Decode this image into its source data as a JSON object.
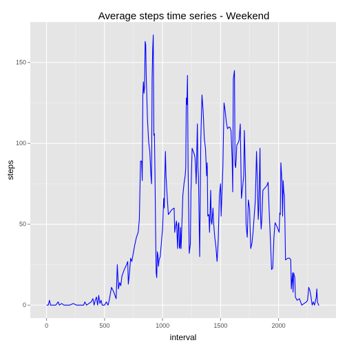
{
  "chart_data": {
    "type": "line",
    "title": "Average steps time series - Weekend",
    "xlabel": "interval",
    "ylabel": "steps",
    "xlim": [
      -140,
      2495
    ],
    "ylim": [
      -8,
      175
    ],
    "x_ticks": [
      0,
      500,
      1000,
      1500,
      2000
    ],
    "y_ticks": [
      0,
      50,
      100,
      150
    ],
    "grid": true,
    "legend": "none",
    "colors": {
      "line": "#0000ff",
      "panel": "#e5e5e5",
      "grid_major": "#ffffff",
      "grid_minor": "#f2f2f2"
    },
    "series": [
      {
        "points": [
          [
            0,
            0
          ],
          [
            15,
            0
          ],
          [
            25,
            3
          ],
          [
            35,
            0
          ],
          [
            80,
            0
          ],
          [
            100,
            2
          ],
          [
            110,
            0
          ],
          [
            130,
            1
          ],
          [
            150,
            0
          ],
          [
            200,
            0
          ],
          [
            230,
            1
          ],
          [
            260,
            0
          ],
          [
            300,
            0
          ],
          [
            320,
            0
          ],
          [
            330,
            2
          ],
          [
            345,
            0
          ],
          [
            365,
            1
          ],
          [
            385,
            2
          ],
          [
            400,
            4
          ],
          [
            410,
            0
          ],
          [
            420,
            3
          ],
          [
            430,
            5
          ],
          [
            440,
            0
          ],
          [
            450,
            6
          ],
          [
            460,
            1
          ],
          [
            470,
            3
          ],
          [
            480,
            0
          ],
          [
            500,
            0
          ],
          [
            515,
            2
          ],
          [
            530,
            0
          ],
          [
            540,
            3
          ],
          [
            560,
            11
          ],
          [
            580,
            8
          ],
          [
            600,
            4
          ],
          [
            610,
            25
          ],
          [
            620,
            10
          ],
          [
            630,
            14
          ],
          [
            640,
            12
          ],
          [
            650,
            18
          ],
          [
            660,
            20
          ],
          [
            670,
            22
          ],
          [
            690,
            25
          ],
          [
            700,
            27
          ],
          [
            705,
            13
          ],
          [
            715,
            20
          ],
          [
            725,
            29
          ],
          [
            735,
            27
          ],
          [
            745,
            31
          ],
          [
            760,
            37
          ],
          [
            775,
            42
          ],
          [
            790,
            45
          ],
          [
            800,
            53
          ],
          [
            810,
            89
          ],
          [
            820,
            89
          ],
          [
            825,
            77
          ],
          [
            830,
            130
          ],
          [
            835,
            138
          ],
          [
            840,
            131
          ],
          [
            845,
            135
          ],
          [
            850,
            163
          ],
          [
            855,
            161
          ],
          [
            860,
            140
          ],
          [
            870,
            115
          ],
          [
            880,
            101
          ],
          [
            890,
            95
          ],
          [
            900,
            80
          ],
          [
            905,
            75
          ],
          [
            910,
            140
          ],
          [
            915,
            158
          ],
          [
            920,
            167
          ],
          [
            925,
            105
          ],
          [
            930,
            106
          ],
          [
            935,
            80
          ],
          [
            940,
            47
          ],
          [
            945,
            20
          ],
          [
            950,
            17
          ],
          [
            955,
            33
          ],
          [
            960,
            31
          ],
          [
            965,
            24
          ],
          [
            970,
            28
          ],
          [
            980,
            30
          ],
          [
            1000,
            47
          ],
          [
            1010,
            66
          ],
          [
            1015,
            60
          ],
          [
            1020,
            80
          ],
          [
            1025,
            95
          ],
          [
            1030,
            80
          ],
          [
            1040,
            67
          ],
          [
            1050,
            56
          ],
          [
            1080,
            59
          ],
          [
            1100,
            60
          ],
          [
            1105,
            45
          ],
          [
            1110,
            48
          ],
          [
            1120,
            52
          ],
          [
            1130,
            35
          ],
          [
            1135,
            50
          ],
          [
            1140,
            51
          ],
          [
            1145,
            36
          ],
          [
            1150,
            35
          ],
          [
            1155,
            48
          ],
          [
            1160,
            35
          ],
          [
            1175,
            68
          ],
          [
            1185,
            75
          ],
          [
            1195,
            80
          ],
          [
            1200,
            85
          ],
          [
            1205,
            128
          ],
          [
            1210,
            124
          ],
          [
            1215,
            142
          ],
          [
            1220,
            87
          ],
          [
            1230,
            32
          ],
          [
            1240,
            38
          ],
          [
            1245,
            70
          ],
          [
            1255,
            97
          ],
          [
            1265,
            95
          ],
          [
            1275,
            93
          ],
          [
            1280,
            91
          ],
          [
            1285,
            85
          ],
          [
            1290,
            75
          ],
          [
            1300,
            112
          ],
          [
            1305,
            85
          ],
          [
            1310,
            79
          ],
          [
            1320,
            30
          ],
          [
            1330,
            103
          ],
          [
            1340,
            130
          ],
          [
            1350,
            120
          ],
          [
            1360,
            103
          ],
          [
            1370,
            97
          ],
          [
            1380,
            80
          ],
          [
            1385,
            88
          ],
          [
            1390,
            55
          ],
          [
            1400,
            56
          ],
          [
            1405,
            45
          ],
          [
            1415,
            71
          ],
          [
            1420,
            52
          ],
          [
            1425,
            50
          ],
          [
            1435,
            60
          ],
          [
            1440,
            51
          ],
          [
            1450,
            42
          ],
          [
            1460,
            36
          ],
          [
            1470,
            27
          ],
          [
            1480,
            40
          ],
          [
            1490,
            68
          ],
          [
            1500,
            75
          ],
          [
            1505,
            55
          ],
          [
            1510,
            65
          ],
          [
            1520,
            85
          ],
          [
            1530,
            125
          ],
          [
            1540,
            120
          ],
          [
            1550,
            113
          ],
          [
            1560,
            109
          ],
          [
            1570,
            110
          ],
          [
            1580,
            110
          ],
          [
            1590,
            108
          ],
          [
            1600,
            90
          ],
          [
            1605,
            70
          ],
          [
            1610,
            140
          ],
          [
            1620,
            145
          ],
          [
            1625,
            87
          ],
          [
            1630,
            85
          ],
          [
            1635,
            90
          ],
          [
            1640,
            99
          ],
          [
            1650,
            100
          ],
          [
            1660,
            102
          ],
          [
            1670,
            112
          ],
          [
            1680,
            66
          ],
          [
            1690,
            73
          ],
          [
            1700,
            80
          ],
          [
            1705,
            108
          ],
          [
            1715,
            80
          ],
          [
            1720,
            50
          ],
          [
            1730,
            42
          ],
          [
            1740,
            65
          ],
          [
            1750,
            60
          ],
          [
            1760,
            35
          ],
          [
            1770,
            38
          ],
          [
            1780,
            45
          ],
          [
            1790,
            55
          ],
          [
            1800,
            65
          ],
          [
            1810,
            95
          ],
          [
            1820,
            70
          ],
          [
            1825,
            53
          ],
          [
            1830,
            60
          ],
          [
            1840,
            97
          ],
          [
            1845,
            55
          ],
          [
            1850,
            47
          ],
          [
            1855,
            52
          ],
          [
            1865,
            71
          ],
          [
            1900,
            74
          ],
          [
            1910,
            76
          ],
          [
            1915,
            66
          ],
          [
            1920,
            57
          ],
          [
            1930,
            40
          ],
          [
            1940,
            22
          ],
          [
            1950,
            23
          ],
          [
            1960,
            42
          ],
          [
            1970,
            51
          ],
          [
            1990,
            48
          ],
          [
            2005,
            45
          ],
          [
            2010,
            57
          ],
          [
            2015,
            56
          ],
          [
            2020,
            88
          ],
          [
            2025,
            82
          ],
          [
            2030,
            75
          ],
          [
            2035,
            55
          ],
          [
            2040,
            77
          ],
          [
            2045,
            70
          ],
          [
            2050,
            68
          ],
          [
            2055,
            51
          ],
          [
            2060,
            28
          ],
          [
            2080,
            29
          ],
          [
            2095,
            29
          ],
          [
            2105,
            28
          ],
          [
            2110,
            10
          ],
          [
            2120,
            20
          ],
          [
            2125,
            8
          ],
          [
            2130,
            20
          ],
          [
            2140,
            17
          ],
          [
            2145,
            5
          ],
          [
            2160,
            3
          ],
          [
            2180,
            4
          ],
          [
            2200,
            0
          ],
          [
            2220,
            1
          ],
          [
            2240,
            2
          ],
          [
            2250,
            3
          ],
          [
            2260,
            11
          ],
          [
            2270,
            9
          ],
          [
            2280,
            5
          ],
          [
            2290,
            0
          ],
          [
            2300,
            2
          ],
          [
            2310,
            0
          ],
          [
            2325,
            5
          ],
          [
            2330,
            10
          ],
          [
            2335,
            2
          ],
          [
            2345,
            0
          ],
          [
            2350,
            0
          ]
        ]
      }
    ]
  }
}
